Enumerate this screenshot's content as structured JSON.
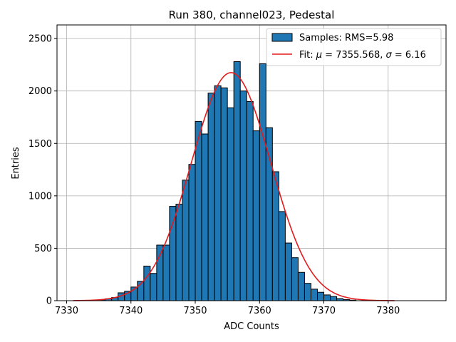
{
  "chart_data": {
    "type": "bar",
    "title": "Run 380, channel023, Pedestal",
    "xlabel": "ADC Counts",
    "ylabel": "Entries",
    "xlim": [
      7328.5,
      7389
    ],
    "ylim": [
      0,
      2630
    ],
    "xticks": [
      7330,
      7340,
      7350,
      7360,
      7370,
      7380
    ],
    "yticks": [
      0,
      500,
      1000,
      1500,
      2000,
      2500
    ],
    "grid": true,
    "legend_position": "top-right",
    "bin_width": 1,
    "bin_starts": [
      7334,
      7335,
      7336,
      7337,
      7338,
      7339,
      7340,
      7341,
      7342,
      7343,
      7344,
      7345,
      7346,
      7347,
      7348,
      7349,
      7350,
      7351,
      7352,
      7353,
      7354,
      7355,
      7356,
      7357,
      7358,
      7359,
      7360,
      7361,
      7362,
      7363,
      7364,
      7365,
      7366,
      7367,
      7368,
      7369,
      7370,
      7371,
      7372,
      7373,
      7374
    ],
    "counts": [
      4,
      8,
      18,
      30,
      75,
      90,
      130,
      185,
      330,
      260,
      530,
      530,
      900,
      920,
      1150,
      1300,
      1710,
      1590,
      1980,
      2050,
      2030,
      1840,
      2280,
      2000,
      1900,
      1620,
      2260,
      1650,
      1230,
      850,
      550,
      410,
      270,
      165,
      110,
      80,
      55,
      40,
      20,
      10,
      5
    ],
    "series": [
      {
        "name": "Samples: RMS=5.98",
        "kind": "histogram",
        "color": "#1f77b4",
        "edgecolor": "#000000"
      },
      {
        "name": "Fit: μ = 7355.568, σ = 6.16",
        "kind": "line",
        "color": "#e31a1c",
        "mu": 7355.568,
        "sigma": 6.16,
        "peak": 2175,
        "x_range": [
          7331,
          7381
        ]
      }
    ]
  },
  "legend": {
    "hist_label": "Samples: RMS=5.98",
    "fit_prefix": "Fit: ",
    "mu_symbol": "μ",
    "mu_text": " = 7355.568, ",
    "sigma_symbol": "σ",
    "sigma_text": " = 6.16"
  }
}
